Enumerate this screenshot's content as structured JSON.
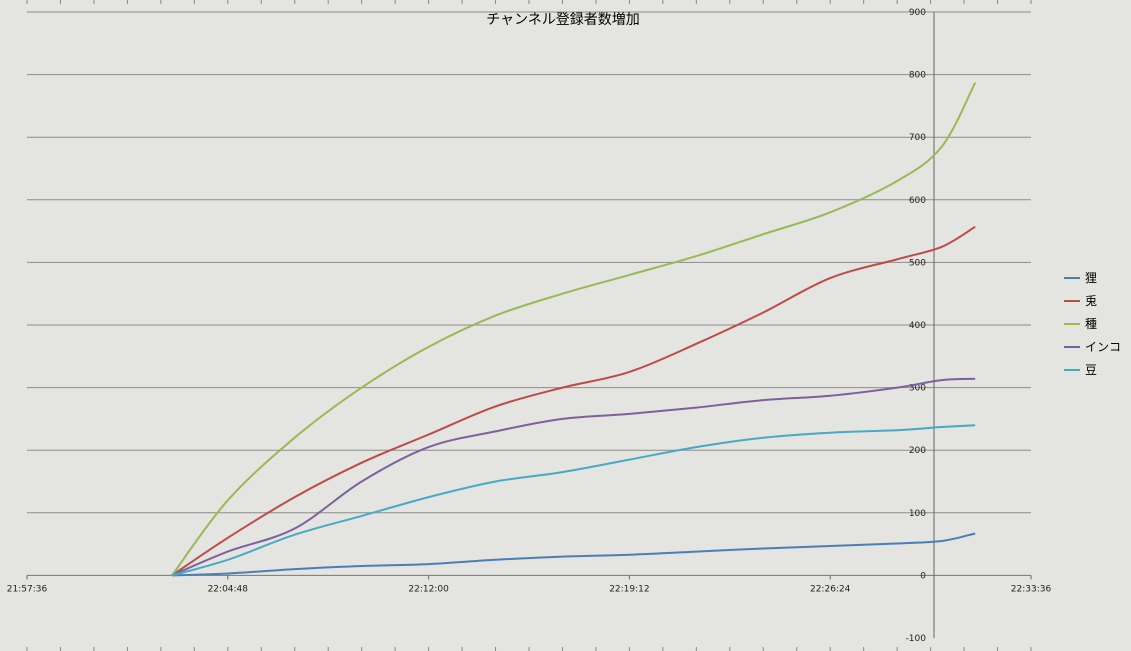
{
  "chart_data": {
    "type": "line",
    "title": "チャンネル登録者数増加",
    "xlabel": "",
    "ylabel": "",
    "x_tick_labels": [
      "21:57:36",
      "22:04:48",
      "22:12:00",
      "22:19:12",
      "22:26:24",
      "22:33:36"
    ],
    "xlim": [
      "21:57:36",
      "22:33:36"
    ],
    "ylim": [
      -100,
      900
    ],
    "y_ticks": [
      -100,
      0,
      100,
      200,
      300,
      400,
      500,
      600,
      700,
      800,
      900
    ],
    "grid": "horizontal",
    "legend_position": "right",
    "x": [
      "22:02:48",
      "22:04:48",
      "22:07:12",
      "22:09:36",
      "22:12:00",
      "22:14:24",
      "22:16:48",
      "22:19:12",
      "22:21:36",
      "22:24:00",
      "22:26:24",
      "22:28:48",
      "22:30:24",
      "22:31:36"
    ],
    "series": [
      {
        "name": "狸",
        "color": "#4a7ebb",
        "values": [
          0,
          3,
          10,
          15,
          18,
          25,
          30,
          33,
          38,
          43,
          47,
          51,
          55,
          67
        ]
      },
      {
        "name": "兎",
        "color": "#be4b48",
        "values": [
          0,
          60,
          125,
          180,
          225,
          270,
          300,
          325,
          370,
          420,
          475,
          505,
          525,
          557
        ]
      },
      {
        "name": "種",
        "color": "#98b954",
        "values": [
          0,
          120,
          220,
          300,
          365,
          415,
          450,
          480,
          510,
          545,
          580,
          630,
          685,
          787
        ]
      },
      {
        "name": "インコ",
        "color": "#7d60a0",
        "values": [
          0,
          38,
          75,
          150,
          205,
          230,
          250,
          258,
          268,
          280,
          287,
          300,
          312,
          314
        ]
      },
      {
        "name": "豆",
        "color": "#46aac5",
        "values": [
          0,
          25,
          65,
          95,
          125,
          150,
          165,
          185,
          205,
          220,
          228,
          232,
          237,
          240
        ]
      }
    ]
  }
}
